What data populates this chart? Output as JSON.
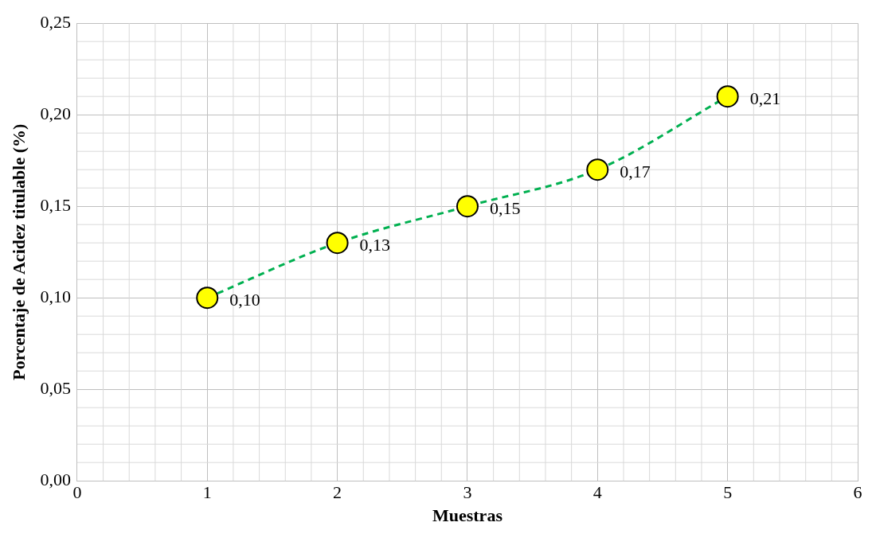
{
  "chart_data": {
    "type": "line",
    "xlabel": "Muestras",
    "ylabel": "Porcentaje de Acidez titulable (%)",
    "x": [
      1,
      2,
      3,
      4,
      5
    ],
    "series": [
      {
        "color": "#00b050",
        "colors": [
          "#ffff00",
          "#ffff00",
          "#ffff00",
          "#ffff00",
          "#ffff00"
        ],
        "values": [
          0.1,
          0.13,
          0.15,
          0.17,
          0.21
        ],
        "value_labels": [
          "0,10",
          "0,13",
          "0,15",
          "0,17",
          "0,21"
        ]
      }
    ],
    "marker": "circle",
    "line_style": "dashed",
    "grid": true,
    "legend": false,
    "xlim": [
      0,
      6
    ],
    "xticks": [
      0,
      1,
      2,
      3,
      4,
      5,
      6
    ],
    "ylim": [
      0,
      0.25
    ],
    "yticks": [
      {
        "value": 0,
        "label": "0,00"
      },
      {
        "value": 0.05,
        "label": "0,05"
      },
      {
        "value": 0.1,
        "label": "0,10"
      },
      {
        "value": 0.15,
        "label": "0,15"
      },
      {
        "value": 0.2,
        "label": "0,20"
      },
      {
        "value": 0.25,
        "label": "0,25"
      }
    ]
  }
}
